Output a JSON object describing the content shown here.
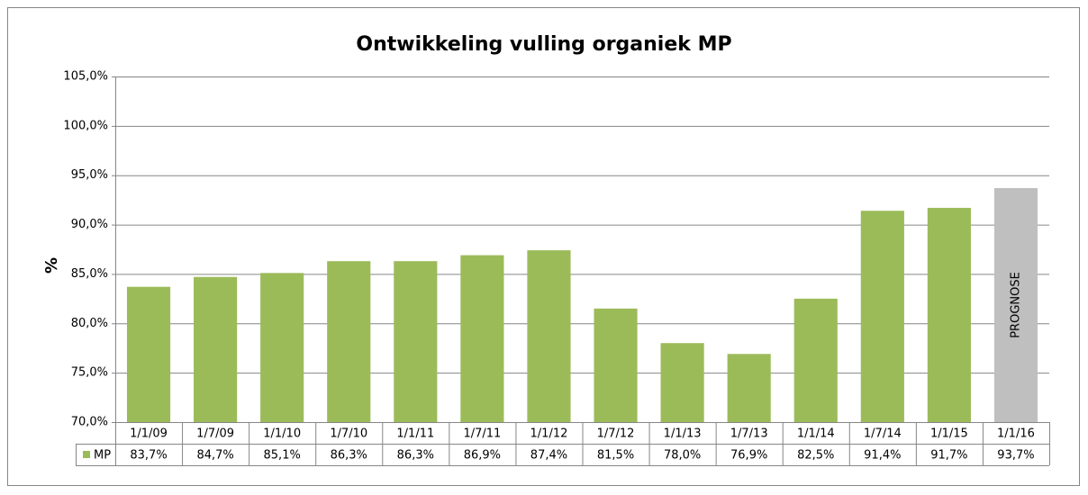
{
  "chart_data": {
    "type": "bar",
    "title": "Ontwikkeling vulling organiek MP",
    "y_label": "%",
    "categories": [
      "1/1/09",
      "1/7/09",
      "1/1/10",
      "1/7/10",
      "1/1/11",
      "1/7/11",
      "1/1/12",
      "1/7/12",
      "1/1/13",
      "1/7/13",
      "1/1/14",
      "1/7/14",
      "1/1/15",
      "1/1/16"
    ],
    "series": [
      {
        "name": "MP",
        "color": "#9bbb59",
        "colors": [
          "#9bbb59",
          "#9bbb59",
          "#9bbb59",
          "#9bbb59",
          "#9bbb59",
          "#9bbb59",
          "#9bbb59",
          "#9bbb59",
          "#9bbb59",
          "#9bbb59",
          "#9bbb59",
          "#9bbb59",
          "#9bbb59",
          "#bfbfbf"
        ],
        "values": [
          83.7,
          84.7,
          85.1,
          86.3,
          86.3,
          86.9,
          87.4,
          81.5,
          78.0,
          76.9,
          82.5,
          91.4,
          91.7,
          93.7
        ],
        "value_labels": [
          "83,7%",
          "84,7%",
          "85,1%",
          "86,3%",
          "86,3%",
          "86,9%",
          "87,4%",
          "81,5%",
          "78,0%",
          "76,9%",
          "82,5%",
          "91,4%",
          "91,7%",
          "93,7%"
        ]
      }
    ],
    "annotation": "PROGNOSE",
    "ylim": [
      70,
      105
    ],
    "yticks": [
      {
        "value": 70,
        "label": "70,0%"
      },
      {
        "value": 75,
        "label": "75,0%"
      },
      {
        "value": 80,
        "label": "80,0%"
      },
      {
        "value": 85,
        "label": "85,0%"
      },
      {
        "value": 90,
        "label": "90,0%"
      },
      {
        "value": 95,
        "label": "95,0%"
      },
      {
        "value": 100,
        "label": "100,0%"
      },
      {
        "value": 105,
        "label": "105,0%"
      }
    ],
    "grid": true
  }
}
